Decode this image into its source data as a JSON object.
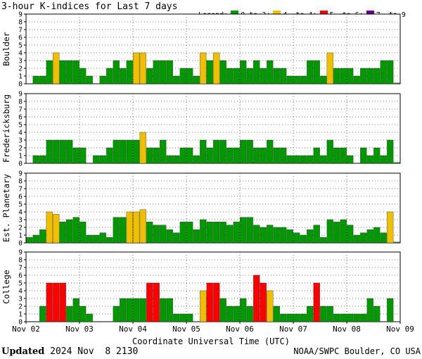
{
  "title": "3-hour K-indices for Last 7 days",
  "legend": {
    "label": "Legend:",
    "items": [
      {
        "label": "0 to 3+",
        "color": "#009900"
      },
      {
        "label": "4- to 4+",
        "color": "#f0c000"
      },
      {
        "label": "5- to 6+",
        "color": "#ff0000"
      },
      {
        "label": "7- to 9",
        "color": "#660099"
      }
    ]
  },
  "footer": {
    "updated_label": "Updated",
    "updated_value": " 2024 Nov  8 2130",
    "agency": "NOAA/SWPC Boulder, CO USA"
  },
  "chart_data": {
    "type": "bar",
    "xlabel": "Coordinate Universal Time (UTC)",
    "x_ticks": [
      "Nov 02",
      "Nov 03",
      "Nov 04",
      "Nov 05",
      "Nov 06",
      "Nov 07",
      "Nov 08",
      "Nov 09"
    ],
    "y_ticks": [
      "0",
      "1",
      "2",
      "3",
      "4",
      "5",
      "6",
      "7",
      "8",
      "9"
    ],
    "ylim": [
      0,
      9
    ],
    "grid": true,
    "panels": [
      {
        "name": "Boulder",
        "values": [
          0,
          1,
          1,
          3,
          4,
          3,
          3,
          3,
          2,
          1,
          0,
          1,
          2,
          3,
          2,
          3,
          4,
          4,
          2,
          3,
          3,
          3,
          1,
          2,
          2,
          1,
          4,
          3,
          4,
          3,
          2,
          2,
          3,
          2,
          3,
          2,
          3,
          2,
          2,
          1,
          1,
          1,
          3,
          3,
          1,
          4,
          2,
          2,
          2,
          1,
          2,
          2,
          2,
          3,
          3,
          0.1
        ]
      },
      {
        "name": "Fredericksburg",
        "values": [
          0,
          1,
          1,
          3,
          3,
          3,
          3,
          2,
          2,
          0,
          1,
          1,
          2,
          3,
          3,
          3,
          3,
          4,
          2,
          2,
          3,
          1,
          1,
          2,
          2,
          1,
          3,
          2,
          3,
          3,
          2,
          2,
          3,
          3,
          2,
          2,
          3,
          2,
          2,
          1,
          1,
          1,
          1,
          2,
          1,
          3,
          2,
          2,
          1,
          0,
          2,
          1,
          2,
          1,
          3,
          0.1
        ]
      },
      {
        "name": "Est. Planetary",
        "values": [
          0.7,
          1,
          1.7,
          4,
          3.7,
          2.7,
          3,
          3.3,
          2.7,
          1,
          1,
          1.3,
          0.7,
          3.3,
          3.3,
          4,
          4,
          4.3,
          2.7,
          2.3,
          2.3,
          1.7,
          1.3,
          2.7,
          2.7,
          1.7,
          3,
          2.7,
          2.7,
          2.7,
          2.3,
          2.7,
          3.3,
          3.3,
          2.3,
          2,
          2.3,
          2,
          2,
          1.7,
          1.3,
          1,
          1.7,
          2.3,
          0.7,
          3,
          2.7,
          3,
          2.3,
          1,
          1.3,
          1.7,
          2,
          1.3,
          4,
          0.1
        ]
      },
      {
        "name": "College",
        "values": [
          0,
          0,
          2,
          5,
          5,
          5,
          2,
          3,
          2,
          1,
          0,
          0,
          0,
          2,
          3,
          3,
          3,
          3,
          5,
          5,
          3,
          3,
          1,
          1,
          1,
          0,
          4,
          5,
          5,
          3,
          2,
          2,
          3,
          2,
          6,
          5,
          4,
          2,
          1,
          1,
          1,
          1,
          2,
          5,
          2,
          2,
          1,
          1,
          1,
          1,
          1,
          3,
          2,
          0,
          3,
          0
        ]
      }
    ]
  }
}
